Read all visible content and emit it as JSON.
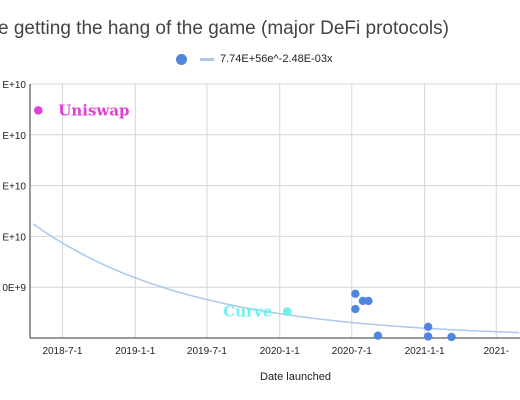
{
  "chart_data": {
    "type": "scatter",
    "title": "e getting the hang of the game (major DeFi protocols)",
    "xlabel": "Date launched",
    "ylabel": "",
    "x_tick_labels": [
      "2018-7-1",
      "2019-1-1",
      "2019-7-1",
      "2020-1-1",
      "2020-7-1",
      "2021-1-1",
      "2021-"
    ],
    "x_tick_dates": [
      "2018-07-01",
      "2019-01-01",
      "2019-07-01",
      "2020-01-01",
      "2020-07-01",
      "2021-01-01",
      "2021-07-01"
    ],
    "xlim": [
      "2018-04-10",
      "2021-08-30"
    ],
    "y_tick_labels": [
      "",
      "0E+9",
      "E+10",
      "E+10",
      "E+10",
      "E+10"
    ],
    "y_tick_values": [
      0,
      10000000000,
      20000000000,
      30000000000,
      40000000000,
      50000000000
    ],
    "ylim": [
      0,
      50000000000
    ],
    "grid": true,
    "legend_position": "top",
    "points": [
      {
        "x": "2018-05-01",
        "y": 44800000000
      },
      {
        "x": "2020-01-20",
        "y": 5200000000
      },
      {
        "x": "2020-07-10",
        "y": 8700000000
      },
      {
        "x": "2020-07-10",
        "y": 5700000000
      },
      {
        "x": "2020-07-29",
        "y": 7300000000
      },
      {
        "x": "2020-08-12",
        "y": 7300000000
      },
      {
        "x": "2020-09-05",
        "y": 450000000
      },
      {
        "x": "2021-01-10",
        "y": 2200000000
      },
      {
        "x": "2021-01-10",
        "y": 300000000
      },
      {
        "x": "2021-03-10",
        "y": 200000000
      }
    ],
    "trendline": {
      "label": "7.74E+56e^-2.48E-03x",
      "a": 7.74e+56,
      "b": -0.00248
    },
    "annotations": [
      {
        "text": "Uniswap",
        "x": "2018-05-01",
        "y": 44800000000,
        "color": "#e040d6"
      },
      {
        "text": "Curve",
        "x": "2020-01-20",
        "y": 5200000000,
        "color": "#6ef0ee"
      }
    ],
    "colors": {
      "points": "#4f86e0",
      "trendline": "#aac8ec",
      "grid": "#d6d6d6",
      "axis": "#333333"
    }
  }
}
